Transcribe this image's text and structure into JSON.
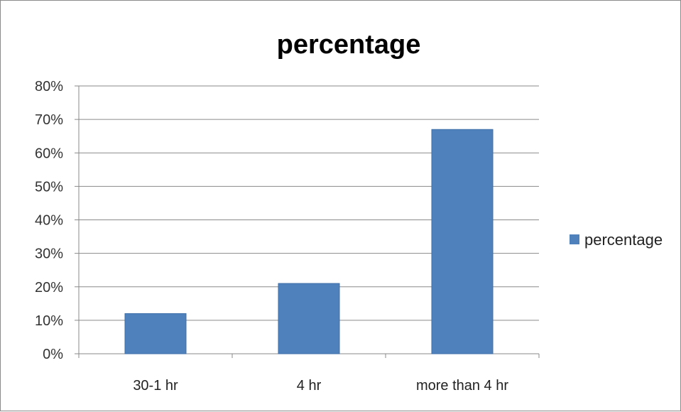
{
  "chart_data": {
    "type": "bar",
    "title": "percentage",
    "xlabel": "",
    "ylabel": "",
    "categories": [
      "30-1 hr",
      "4 hr",
      "more than 4 hr"
    ],
    "series": [
      {
        "name": "percentage",
        "values": [
          12,
          21,
          67
        ],
        "color": "#4f81bd"
      }
    ],
    "ylim": [
      0,
      80
    ],
    "yticks": [
      0,
      10,
      20,
      30,
      40,
      50,
      60,
      70,
      80
    ],
    "ytick_labels": [
      "0%",
      "10%",
      "20%",
      "30%",
      "40%",
      "50%",
      "60%",
      "70%",
      "80%"
    ],
    "grid": true,
    "legend_position": "right"
  }
}
